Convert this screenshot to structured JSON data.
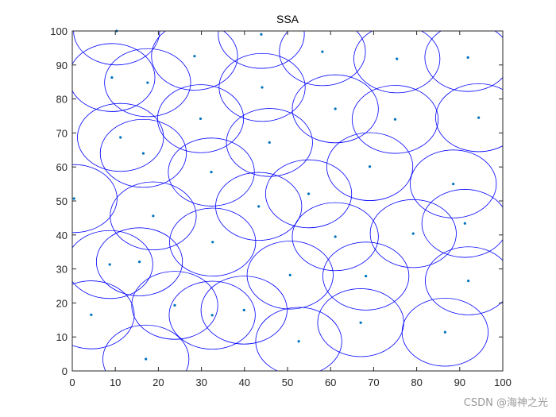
{
  "chart_data": {
    "type": "scatter",
    "title": "SSA",
    "xlabel": "",
    "ylabel": "",
    "xlim": [
      0,
      100
    ],
    "ylim": [
      0,
      100
    ],
    "xticks": [
      0,
      10,
      20,
      30,
      40,
      50,
      60,
      70,
      80,
      90,
      100
    ],
    "yticks": [
      0,
      10,
      20,
      30,
      40,
      50,
      60,
      70,
      80,
      90,
      100
    ],
    "radius": 10,
    "grid": false,
    "box": true,
    "series": [
      {
        "marker_color": "#0072BD",
        "circle_color": "#0000FF",
        "points": [
          [
            10.3,
            100.0
          ],
          [
            9.2,
            86.3
          ],
          [
            17.5,
            84.8
          ],
          [
            28.4,
            92.6
          ],
          [
            43.9,
            99.0
          ],
          [
            58.1,
            93.9
          ],
          [
            75.4,
            91.8
          ],
          [
            91.9,
            92.2
          ],
          [
            44.1,
            83.4
          ],
          [
            29.8,
            74.2
          ],
          [
            61.1,
            77.1
          ],
          [
            75.0,
            74.0
          ],
          [
            94.4,
            74.5
          ],
          [
            11.2,
            68.7
          ],
          [
            16.5,
            64.0
          ],
          [
            45.8,
            67.2
          ],
          [
            32.3,
            58.5
          ],
          [
            69.1,
            60.1
          ],
          [
            88.5,
            55.0
          ],
          [
            0.4,
            50.7
          ],
          [
            18.8,
            45.6
          ],
          [
            43.3,
            48.4
          ],
          [
            54.9,
            52.1
          ],
          [
            91.2,
            43.4
          ],
          [
            61.1,
            39.5
          ],
          [
            79.2,
            40.4
          ],
          [
            32.6,
            37.9
          ],
          [
            8.7,
            31.3
          ],
          [
            15.6,
            32.1
          ],
          [
            50.6,
            28.2
          ],
          [
            68.2,
            27.9
          ],
          [
            92.0,
            26.5
          ],
          [
            23.8,
            19.3
          ],
          [
            32.5,
            16.4
          ],
          [
            39.9,
            17.9
          ],
          [
            4.4,
            16.5
          ],
          [
            52.6,
            8.7
          ],
          [
            67.0,
            14.2
          ],
          [
            86.6,
            11.4
          ],
          [
            17.1,
            3.5
          ]
        ]
      }
    ]
  },
  "watermark": "CSDN @海神之光"
}
